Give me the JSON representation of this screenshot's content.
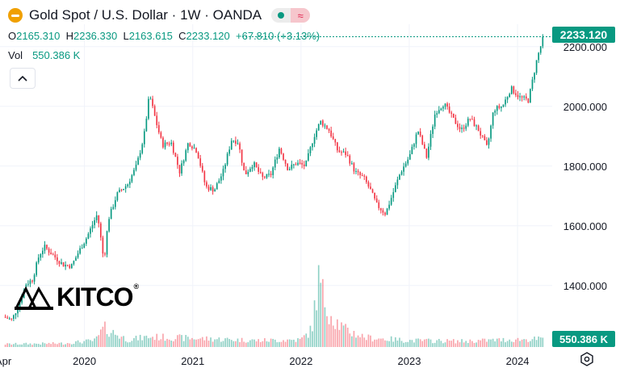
{
  "header": {
    "title": "Gold Spot / U.S. Dollar · 1W · OANDA",
    "ohlc": {
      "o_label": "O",
      "o_value": "2165.310",
      "h_label": "H",
      "h_value": "2236.330",
      "l_label": "L",
      "l_value": "2163.615",
      "c_label": "C",
      "c_value": "2233.120",
      "change": "+67.810 (+3.13%)"
    },
    "volume_label": "Vol",
    "volume_value": "550.386 K"
  },
  "watermark": {
    "text": "KITCO"
  },
  "price_tag": "2233.120",
  "volume_tag": "550.386 K",
  "colors": {
    "up": "#089981",
    "down": "#f23645",
    "accent": "#089981",
    "grid": "#f0f3fa"
  },
  "icons": [
    "gold-badge-icon",
    "status-dot-icon",
    "wave-icon",
    "chevron-up-icon",
    "settings-hexagon-icon"
  ],
  "chart_data": {
    "type": "candlestick",
    "yaxis": {
      "ticks": [
        1400,
        1600,
        1800,
        2000,
        2200
      ],
      "tick_labels": [
        "1400.000",
        "1600.000",
        "1800.000",
        "2000.000",
        "2200.000"
      ],
      "ylim": [
        1275,
        2275
      ]
    },
    "xaxis": {
      "labels": [
        "Apr",
        "2020",
        "2021",
        "2022",
        "2023",
        "2024"
      ],
      "label_positions": [
        2019.25,
        2020.0,
        2021.0,
        2022.0,
        2023.0,
        2024.0
      ],
      "xlim": [
        2019.22,
        2024.32
      ]
    },
    "last_close": 2233.12,
    "series": [
      {
        "anchors": [
          [
            2019.25,
            1295
          ],
          [
            2019.33,
            1285
          ],
          [
            2019.4,
            1340
          ],
          [
            2019.46,
            1405
          ],
          [
            2019.52,
            1420
          ],
          [
            2019.58,
            1500
          ],
          [
            2019.63,
            1530
          ],
          [
            2019.7,
            1505
          ],
          [
            2019.8,
            1470
          ],
          [
            2019.88,
            1465
          ],
          [
            2019.95,
            1515
          ],
          [
            2020.02,
            1560
          ],
          [
            2020.12,
            1640
          ],
          [
            2020.18,
            1480
          ],
          [
            2020.22,
            1620
          ],
          [
            2020.3,
            1705
          ],
          [
            2020.4,
            1740
          ],
          [
            2020.48,
            1800
          ],
          [
            2020.55,
            1900
          ],
          [
            2020.6,
            2040
          ],
          [
            2020.66,
            1950
          ],
          [
            2020.72,
            1870
          ],
          [
            2020.8,
            1880
          ],
          [
            2020.88,
            1780
          ],
          [
            2020.96,
            1880
          ],
          [
            2021.04,
            1850
          ],
          [
            2021.12,
            1730
          ],
          [
            2021.2,
            1720
          ],
          [
            2021.28,
            1780
          ],
          [
            2021.36,
            1890
          ],
          [
            2021.42,
            1880
          ],
          [
            2021.48,
            1770
          ],
          [
            2021.56,
            1810
          ],
          [
            2021.64,
            1760
          ],
          [
            2021.72,
            1770
          ],
          [
            2021.8,
            1860
          ],
          [
            2021.88,
            1790
          ],
          [
            2021.96,
            1810
          ],
          [
            2022.04,
            1800
          ],
          [
            2022.12,
            1900
          ],
          [
            2022.18,
            1950
          ],
          [
            2022.26,
            1920
          ],
          [
            2022.34,
            1850
          ],
          [
            2022.42,
            1840
          ],
          [
            2022.5,
            1780
          ],
          [
            2022.58,
            1760
          ],
          [
            2022.64,
            1720
          ],
          [
            2022.7,
            1670
          ],
          [
            2022.78,
            1640
          ],
          [
            2022.84,
            1700
          ],
          [
            2022.92,
            1780
          ],
          [
            2023.0,
            1830
          ],
          [
            2023.08,
            1920
          ],
          [
            2023.16,
            1830
          ],
          [
            2023.24,
            1980
          ],
          [
            2023.32,
            2010
          ],
          [
            2023.4,
            1960
          ],
          [
            2023.48,
            1920
          ],
          [
            2023.56,
            1960
          ],
          [
            2023.64,
            1920
          ],
          [
            2023.72,
            1860
          ],
          [
            2023.78,
            1990
          ],
          [
            2023.86,
            2000
          ],
          [
            2023.94,
            2060
          ],
          [
            2024.02,
            2030
          ],
          [
            2024.1,
            2020
          ],
          [
            2024.18,
            2160
          ],
          [
            2024.24,
            2233
          ]
        ],
        "volume_anchors": [
          [
            2019.25,
            4
          ],
          [
            2019.8,
            5
          ],
          [
            2020.1,
            9
          ],
          [
            2020.18,
            26
          ],
          [
            2020.4,
            10
          ],
          [
            2020.6,
            14
          ],
          [
            2021.0,
            12
          ],
          [
            2021.6,
            9
          ],
          [
            2022.0,
            10
          ],
          [
            2022.1,
            24
          ],
          [
            2022.16,
            92
          ],
          [
            2022.22,
            62
          ],
          [
            2022.3,
            40
          ],
          [
            2022.4,
            24
          ],
          [
            2022.6,
            13
          ],
          [
            2023.0,
            9
          ],
          [
            2023.5,
            8
          ],
          [
            2023.9,
            10
          ],
          [
            2024.24,
            11
          ]
        ]
      }
    ]
  }
}
